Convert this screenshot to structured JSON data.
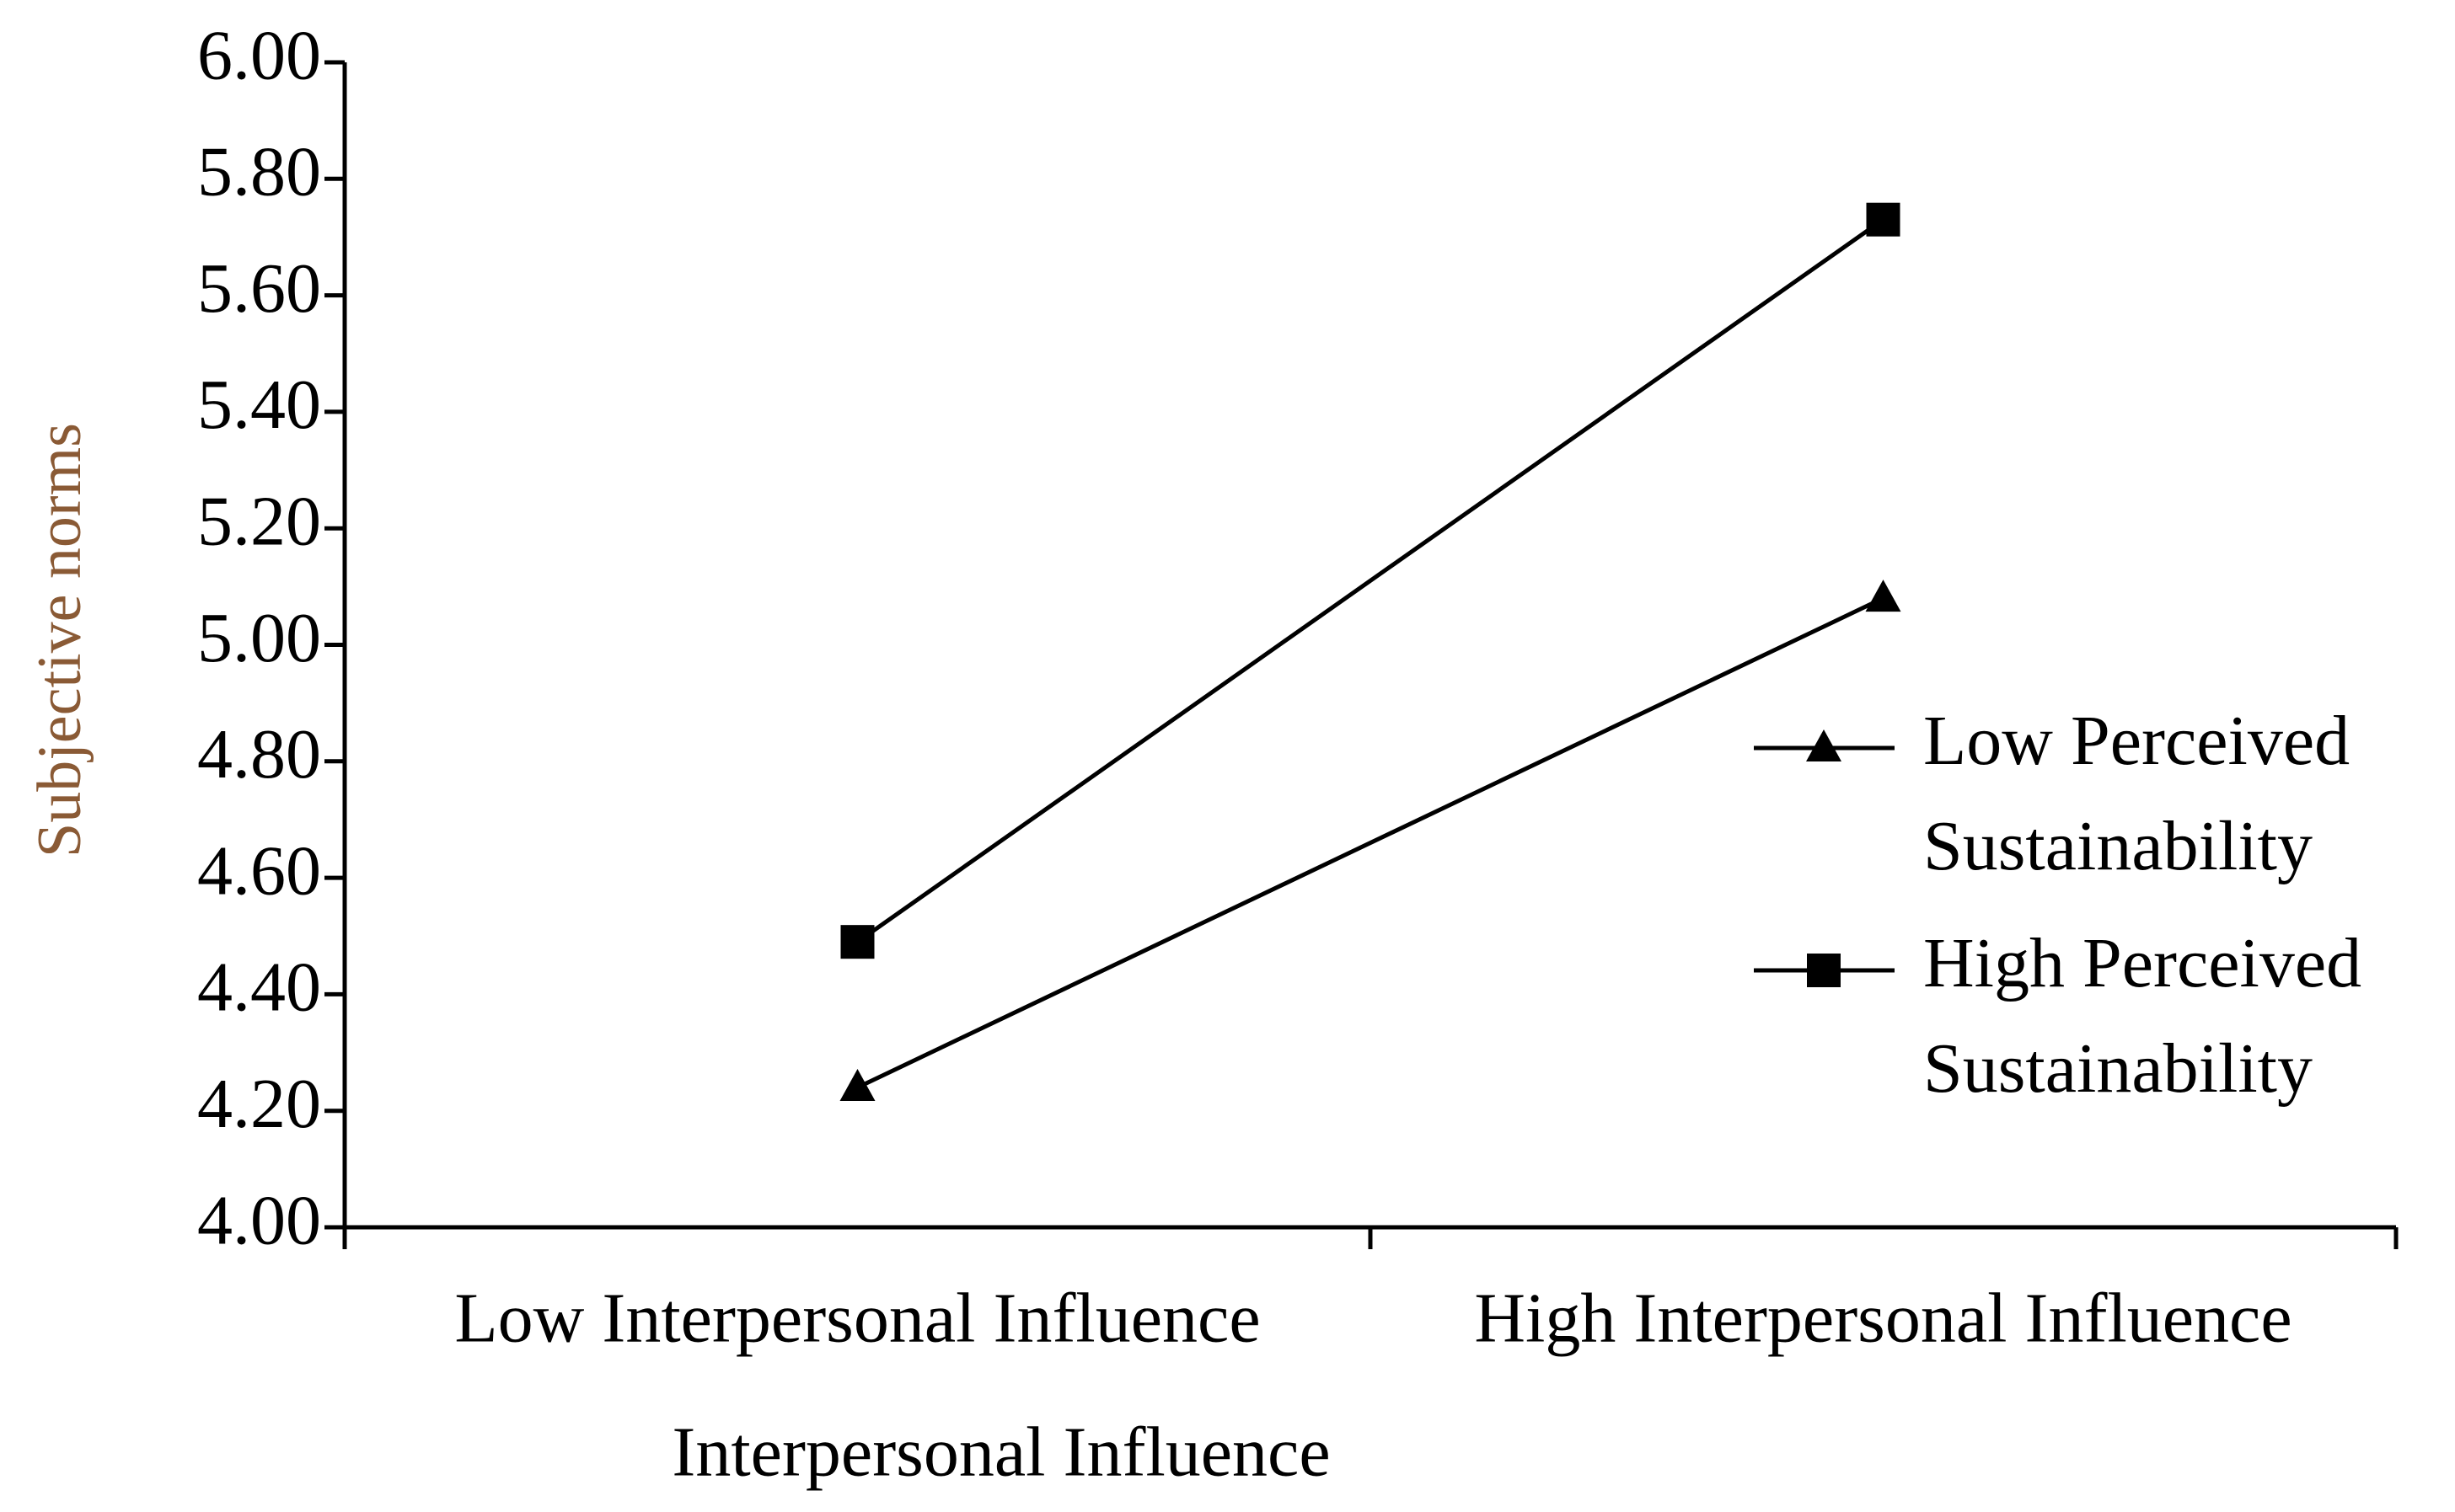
{
  "chart_data": {
    "type": "line",
    "x_label": "Interpersonal Influence",
    "y_label": "Subjective norms",
    "categories": [
      "Low Interpersonal Influence",
      "High Interpersonal Influence"
    ],
    "series": [
      {
        "name": "Low Perceived Sustainability",
        "color": "#000000",
        "marker": "triangle",
        "values": [
          4.24,
          5.08
        ]
      },
      {
        "name": "High Perceived Sustainability",
        "color": "#000000",
        "marker": "square",
        "values": [
          4.49,
          5.73
        ]
      }
    ],
    "ylim": [
      4.0,
      6.0
    ],
    "yticks": [
      {
        "value": 4,
        "label": "4.00"
      },
      {
        "value": 4.2,
        "label": "4.20"
      },
      {
        "value": 4.4,
        "label": "4.40"
      },
      {
        "value": 4.6,
        "label": "4.60"
      },
      {
        "value": 4.8,
        "label": "4.80"
      },
      {
        "value": 5,
        "label": "5.00"
      },
      {
        "value": 5.2,
        "label": "5.20"
      },
      {
        "value": 5.4,
        "label": "5.40"
      },
      {
        "value": 5.6,
        "label": "5.60"
      },
      {
        "value": 5.8,
        "label": "5.80"
      },
      {
        "value": 6,
        "label": "6.00"
      }
    ],
    "grid": false
  }
}
